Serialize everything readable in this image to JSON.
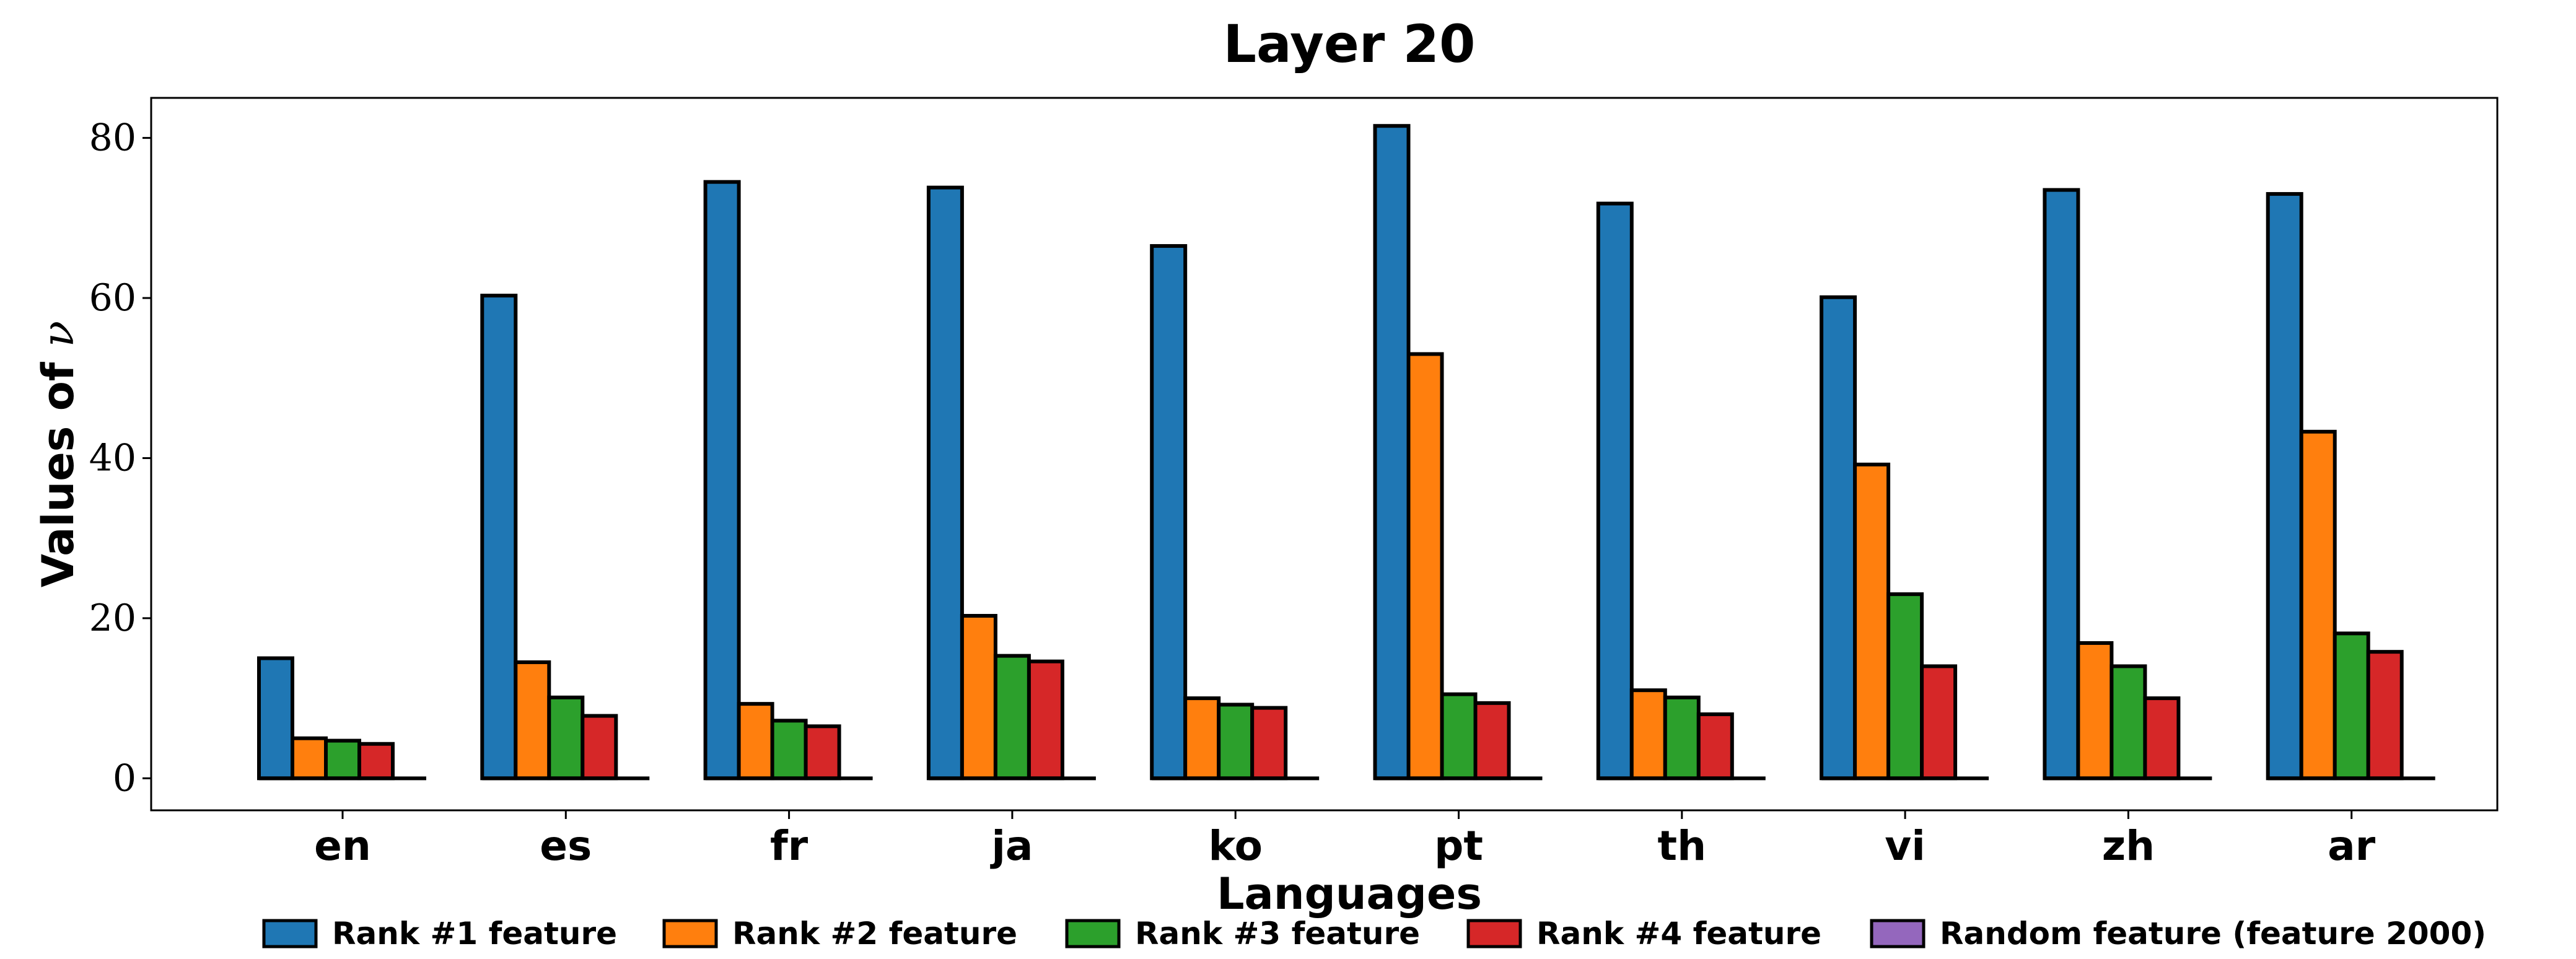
{
  "chart_data": {
    "type": "bar",
    "title": "Layer 20",
    "xlabel": "Languages",
    "ylabel_text": "Values of ",
    "ylabel_symbol": "ν",
    "categories": [
      "en",
      "es",
      "fr",
      "ja",
      "ko",
      "pt",
      "th",
      "vi",
      "zh",
      "ar"
    ],
    "ylim": [
      -4,
      85
    ],
    "yticks": [
      0,
      20,
      40,
      60,
      80
    ],
    "grid": false,
    "legend_position": "bottom",
    "series": [
      {
        "name": "Rank #1 feature",
        "color": "#1f77b4",
        "values": [
          15.0,
          60.3,
          74.5,
          73.8,
          66.5,
          81.5,
          71.8,
          60.1,
          73.5,
          73.0
        ]
      },
      {
        "name": "Rank #2 feature",
        "color": "#ff7f0e",
        "values": [
          5.0,
          14.5,
          9.3,
          20.3,
          10.0,
          53.0,
          11.0,
          39.2,
          16.9,
          43.3
        ]
      },
      {
        "name": "Rank #3 feature",
        "color": "#2ca02c",
        "values": [
          4.7,
          10.1,
          7.2,
          15.3,
          9.2,
          10.5,
          10.1,
          23.0,
          14.0,
          18.1
        ]
      },
      {
        "name": "Rank #4 feature",
        "color": "#d62728",
        "values": [
          4.3,
          7.8,
          6.5,
          14.6,
          8.8,
          9.4,
          8.0,
          14.0,
          10.0,
          15.8
        ]
      },
      {
        "name": "Random feature (feature 2000)",
        "color": "#9467bd",
        "values": [
          0,
          0,
          0,
          0,
          0,
          0,
          0,
          0,
          0,
          0
        ]
      }
    ]
  }
}
